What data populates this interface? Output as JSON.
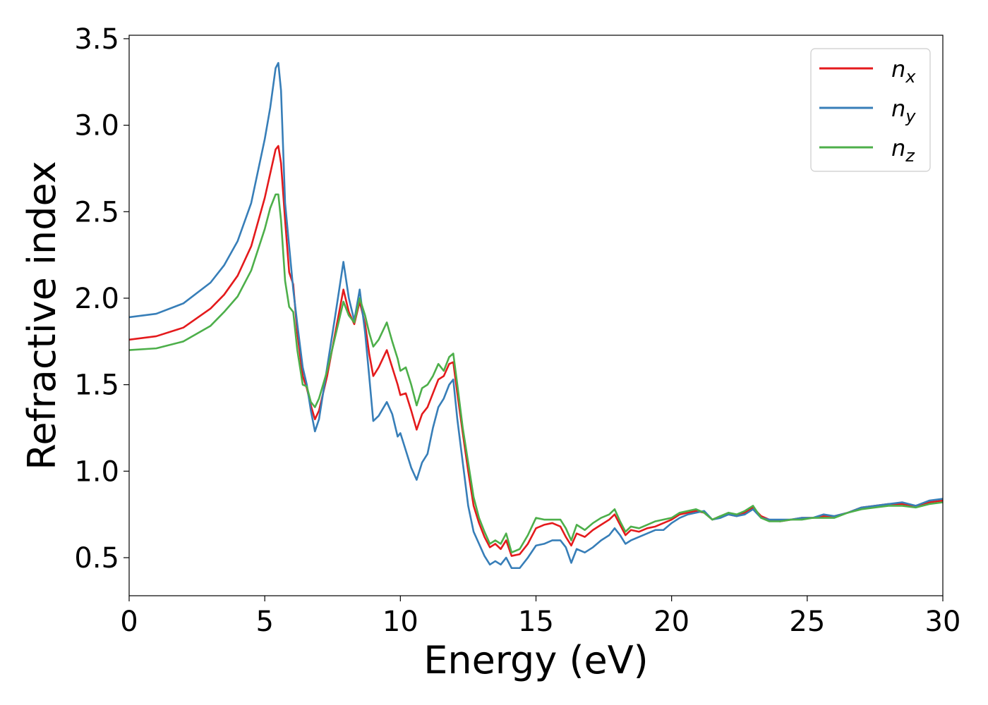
{
  "chart_data": {
    "type": "line",
    "title": "",
    "xlabel": "Energy (eV)",
    "ylabel": "Refractive index",
    "xlim": [
      0,
      30
    ],
    "ylim": [
      0.28,
      3.52
    ],
    "xticks": [
      0,
      5,
      10,
      15,
      20,
      25,
      30
    ],
    "xtick_labels": [
      "0",
      "5",
      "10",
      "15",
      "20",
      "25",
      "30"
    ],
    "yticks": [
      0.5,
      1.0,
      1.5,
      2.0,
      2.5,
      3.0,
      3.5
    ],
    "ytick_labels": [
      "0.5",
      "1.0",
      "1.5",
      "2.0",
      "2.5",
      "3.0",
      "3.5"
    ],
    "grid": false,
    "legend": {
      "position": "top-right"
    },
    "series": [
      {
        "name": "n",
        "subscript": "x",
        "color": "#e41a1c",
        "x": [
          0,
          1,
          2,
          3,
          3.5,
          4,
          4.5,
          5,
          5.2,
          5.4,
          5.5,
          5.6,
          5.75,
          5.9,
          6.05,
          6.2,
          6.4,
          6.55,
          6.7,
          6.85,
          7.0,
          7.3,
          7.6,
          7.9,
          8.1,
          8.3,
          8.5,
          8.7,
          8.85,
          9.0,
          9.2,
          9.5,
          9.7,
          9.9,
          10.0,
          10.2,
          10.4,
          10.6,
          10.8,
          11.0,
          11.2,
          11.4,
          11.6,
          11.8,
          11.95,
          12.1,
          12.3,
          12.5,
          12.7,
          12.9,
          13.1,
          13.3,
          13.5,
          13.7,
          13.9,
          14.1,
          14.4,
          14.7,
          15.0,
          15.3,
          15.6,
          15.9,
          16.1,
          16.3,
          16.5,
          16.8,
          17.1,
          17.4,
          17.7,
          17.9,
          18.1,
          18.3,
          18.5,
          18.8,
          19.1,
          19.4,
          19.7,
          20.0,
          20.3,
          20.6,
          20.9,
          21.2,
          21.5,
          21.8,
          22.1,
          22.4,
          22.7,
          23.0,
          23.3,
          23.6,
          24.0,
          24.4,
          24.8,
          25.2,
          25.6,
          26.0,
          26.5,
          27.0,
          27.5,
          28.0,
          28.5,
          29.0,
          29.5,
          30.0
        ],
        "values": [
          1.76,
          1.78,
          1.83,
          1.94,
          2.02,
          2.13,
          2.3,
          2.58,
          2.72,
          2.86,
          2.88,
          2.78,
          2.45,
          2.15,
          2.08,
          1.8,
          1.55,
          1.48,
          1.38,
          1.3,
          1.35,
          1.55,
          1.8,
          2.05,
          1.92,
          1.85,
          1.98,
          1.85,
          1.68,
          1.55,
          1.6,
          1.7,
          1.6,
          1.5,
          1.44,
          1.45,
          1.35,
          1.24,
          1.33,
          1.37,
          1.45,
          1.53,
          1.55,
          1.62,
          1.63,
          1.45,
          1.22,
          1.0,
          0.8,
          0.7,
          0.62,
          0.56,
          0.58,
          0.55,
          0.6,
          0.51,
          0.52,
          0.58,
          0.67,
          0.69,
          0.7,
          0.68,
          0.62,
          0.57,
          0.64,
          0.62,
          0.66,
          0.69,
          0.72,
          0.75,
          0.69,
          0.63,
          0.66,
          0.65,
          0.67,
          0.68,
          0.7,
          0.72,
          0.75,
          0.76,
          0.77,
          0.76,
          0.72,
          0.74,
          0.75,
          0.74,
          0.76,
          0.79,
          0.74,
          0.72,
          0.71,
          0.72,
          0.73,
          0.73,
          0.74,
          0.74,
          0.76,
          0.79,
          0.8,
          0.81,
          0.81,
          0.8,
          0.82,
          0.83
        ]
      },
      {
        "name": "n",
        "subscript": "y",
        "color": "#377eb8",
        "x": [
          0,
          1,
          2,
          3,
          3.5,
          4,
          4.5,
          5,
          5.2,
          5.4,
          5.5,
          5.6,
          5.75,
          5.9,
          6.05,
          6.2,
          6.4,
          6.55,
          6.7,
          6.85,
          7.0,
          7.3,
          7.6,
          7.9,
          8.1,
          8.3,
          8.5,
          8.7,
          8.85,
          9.0,
          9.2,
          9.5,
          9.7,
          9.9,
          10.0,
          10.2,
          10.4,
          10.6,
          10.8,
          11.0,
          11.2,
          11.4,
          11.6,
          11.8,
          11.95,
          12.1,
          12.3,
          12.5,
          12.7,
          12.9,
          13.1,
          13.3,
          13.5,
          13.7,
          13.9,
          14.1,
          14.4,
          14.7,
          15.0,
          15.3,
          15.6,
          15.9,
          16.1,
          16.3,
          16.5,
          16.8,
          17.1,
          17.4,
          17.7,
          17.9,
          18.1,
          18.3,
          18.5,
          18.8,
          19.1,
          19.4,
          19.7,
          20.0,
          20.3,
          20.6,
          20.9,
          21.2,
          21.5,
          21.8,
          22.1,
          22.4,
          22.7,
          23.0,
          23.3,
          23.6,
          24.0,
          24.4,
          24.8,
          25.2,
          25.6,
          26.0,
          26.5,
          27.0,
          27.5,
          28.0,
          28.5,
          29.0,
          29.5,
          30.0
        ],
        "values": [
          1.89,
          1.91,
          1.97,
          2.09,
          2.19,
          2.33,
          2.55,
          2.92,
          3.1,
          3.33,
          3.36,
          3.2,
          2.55,
          2.3,
          2.05,
          1.85,
          1.6,
          1.5,
          1.35,
          1.23,
          1.3,
          1.6,
          1.9,
          2.21,
          2.0,
          1.87,
          2.05,
          1.8,
          1.55,
          1.29,
          1.32,
          1.4,
          1.33,
          1.2,
          1.22,
          1.12,
          1.02,
          0.95,
          1.05,
          1.1,
          1.25,
          1.37,
          1.42,
          1.5,
          1.53,
          1.3,
          1.05,
          0.8,
          0.65,
          0.58,
          0.51,
          0.46,
          0.48,
          0.46,
          0.5,
          0.44,
          0.44,
          0.5,
          0.57,
          0.58,
          0.6,
          0.6,
          0.56,
          0.47,
          0.55,
          0.53,
          0.56,
          0.6,
          0.63,
          0.67,
          0.63,
          0.58,
          0.6,
          0.62,
          0.64,
          0.66,
          0.66,
          0.7,
          0.73,
          0.75,
          0.76,
          0.77,
          0.72,
          0.73,
          0.75,
          0.74,
          0.75,
          0.78,
          0.73,
          0.72,
          0.72,
          0.72,
          0.73,
          0.73,
          0.75,
          0.74,
          0.76,
          0.79,
          0.8,
          0.81,
          0.82,
          0.8,
          0.83,
          0.84
        ]
      },
      {
        "name": "n",
        "subscript": "z",
        "color": "#4daf4a",
        "x": [
          0,
          1,
          2,
          3,
          3.5,
          4,
          4.5,
          5,
          5.2,
          5.4,
          5.5,
          5.6,
          5.75,
          5.9,
          6.05,
          6.2,
          6.4,
          6.55,
          6.7,
          6.85,
          7.0,
          7.3,
          7.6,
          7.9,
          8.1,
          8.3,
          8.5,
          8.7,
          8.85,
          9.0,
          9.2,
          9.5,
          9.7,
          9.9,
          10.0,
          10.2,
          10.4,
          10.6,
          10.8,
          11.0,
          11.2,
          11.4,
          11.6,
          11.8,
          11.95,
          12.1,
          12.3,
          12.5,
          12.7,
          12.9,
          13.1,
          13.3,
          13.5,
          13.7,
          13.9,
          14.1,
          14.4,
          14.7,
          15.0,
          15.3,
          15.6,
          15.9,
          16.1,
          16.3,
          16.5,
          16.8,
          17.1,
          17.4,
          17.7,
          17.9,
          18.1,
          18.3,
          18.5,
          18.8,
          19.1,
          19.4,
          19.7,
          20.0,
          20.3,
          20.6,
          20.9,
          21.2,
          21.5,
          21.8,
          22.1,
          22.4,
          22.7,
          23.0,
          23.3,
          23.6,
          24.0,
          24.4,
          24.8,
          25.2,
          25.6,
          26.0,
          26.5,
          27.0,
          27.5,
          28.0,
          28.5,
          29.0,
          29.5,
          30.0
        ],
        "values": [
          1.7,
          1.71,
          1.75,
          1.84,
          1.92,
          2.01,
          2.16,
          2.4,
          2.52,
          2.6,
          2.6,
          2.45,
          2.1,
          1.95,
          1.92,
          1.7,
          1.5,
          1.49,
          1.4,
          1.37,
          1.42,
          1.58,
          1.78,
          1.98,
          1.9,
          1.86,
          2.0,
          1.9,
          1.8,
          1.72,
          1.76,
          1.86,
          1.75,
          1.65,
          1.58,
          1.6,
          1.5,
          1.38,
          1.48,
          1.5,
          1.55,
          1.62,
          1.58,
          1.66,
          1.68,
          1.5,
          1.25,
          1.05,
          0.85,
          0.73,
          0.65,
          0.58,
          0.6,
          0.58,
          0.64,
          0.53,
          0.55,
          0.63,
          0.73,
          0.72,
          0.72,
          0.72,
          0.67,
          0.6,
          0.69,
          0.66,
          0.7,
          0.73,
          0.75,
          0.78,
          0.71,
          0.65,
          0.68,
          0.67,
          0.69,
          0.71,
          0.72,
          0.73,
          0.76,
          0.77,
          0.78,
          0.76,
          0.72,
          0.74,
          0.76,
          0.75,
          0.77,
          0.8,
          0.73,
          0.71,
          0.71,
          0.72,
          0.72,
          0.73,
          0.73,
          0.73,
          0.76,
          0.78,
          0.79,
          0.8,
          0.8,
          0.79,
          0.81,
          0.82
        ]
      }
    ]
  }
}
